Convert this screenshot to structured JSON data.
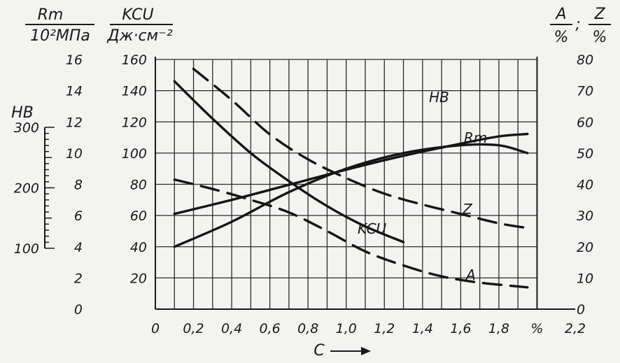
{
  "chart_data": {
    "type": "line",
    "axes": {
      "x": {
        "label": "C",
        "unit": "%",
        "range": [
          0,
          2.2
        ],
        "ticks": [
          "0",
          "0,2",
          "0,4",
          "0,6",
          "0,8",
          "1,0",
          "1,2",
          "1,4",
          "1,6",
          "1,8",
          "%",
          "2,2"
        ]
      },
      "rm": {
        "label_top": "Rm",
        "label_bottom": "10²МПа",
        "range": [
          0,
          16
        ],
        "ticks": [
          "0",
          "2",
          "4",
          "6",
          "8",
          "10",
          "12",
          "14",
          "16"
        ]
      },
      "kcu": {
        "label_top": "KCU",
        "label_bottom": "Дж·см⁻²",
        "range": [
          0,
          160
        ],
        "ticks": [
          "20",
          "40",
          "60",
          "80",
          "100",
          "120",
          "140",
          "160"
        ]
      },
      "hb": {
        "label": "HB",
        "range": [
          100,
          300
        ],
        "ticks": [
          "300",
          "200",
          "100"
        ]
      },
      "az": {
        "label_a": "A",
        "label_z": "Z",
        "unit": "%",
        "sep": ";",
        "range": [
          0,
          80
        ],
        "ticks": [
          "0",
          "10",
          "20",
          "30",
          "40",
          "50",
          "60",
          "70",
          "80"
        ]
      }
    },
    "grid": true,
    "series": [
      {
        "name": "HB",
        "axis": "hb",
        "style": "solid",
        "x": [
          0.1,
          0.4,
          0.7,
          1.0,
          1.3,
          1.6,
          1.8,
          1.95
        ],
        "y": [
          157,
          180,
          205,
          230,
          253,
          273,
          285,
          289
        ]
      },
      {
        "name": "Rm",
        "axis": "rm",
        "style": "solid",
        "x": [
          0.1,
          0.4,
          0.7,
          1.0,
          1.3,
          1.6,
          1.8,
          1.95
        ],
        "y": [
          4.0,
          5.6,
          7.5,
          9.0,
          10.0,
          10.5,
          10.5,
          10.0
        ]
      },
      {
        "name": "KCU",
        "axis": "kcu",
        "style": "solid",
        "x": [
          0.1,
          0.3,
          0.5,
          0.7,
          0.9,
          1.1,
          1.3
        ],
        "y": [
          146,
          122,
          100,
          82,
          66,
          53,
          43
        ]
      },
      {
        "name": "Z",
        "axis": "az",
        "style": "dashed",
        "x": [
          0.2,
          0.4,
          0.6,
          0.8,
          1.0,
          1.2,
          1.4,
          1.6,
          1.8,
          1.95
        ],
        "y": [
          77,
          67,
          56,
          48,
          42,
          37,
          33.5,
          30.5,
          27.5,
          26
        ]
      },
      {
        "name": "A",
        "axis": "az",
        "style": "dashed",
        "x": [
          0.1,
          0.3,
          0.5,
          0.7,
          0.9,
          1.1,
          1.3,
          1.5,
          1.7,
          1.95
        ],
        "y": [
          41.5,
          38.5,
          35,
          31,
          25,
          18.5,
          14,
          10.5,
          8.5,
          7
        ]
      }
    ]
  }
}
